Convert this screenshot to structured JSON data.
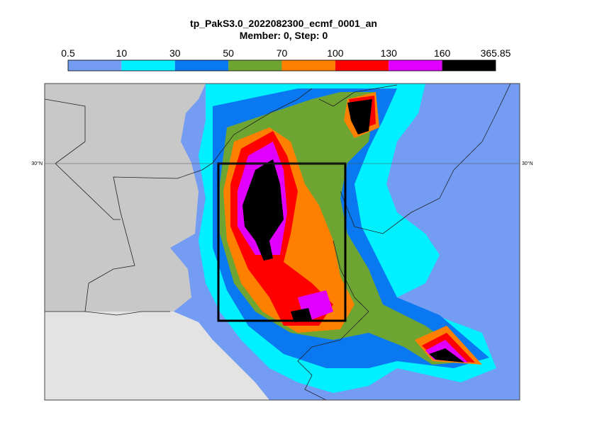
{
  "header": {
    "title": "tp_PakS3.0_2022082300_ecmf_0001_an",
    "subtitle": "Member: 0, Step: 0"
  },
  "colorbar": {
    "levels": [
      0.5,
      10,
      30,
      50,
      70,
      100,
      130,
      160,
      365.85
    ],
    "colors": [
      "#739cf2",
      "#00f0ff",
      "#0a78f0",
      "#6ea532",
      "#ff8000",
      "#ff0000",
      "#e100ff",
      "#000000"
    ]
  },
  "map": {
    "lat_labels": [
      {
        "value": 30,
        "label": "30°N"
      }
    ]
  }
}
